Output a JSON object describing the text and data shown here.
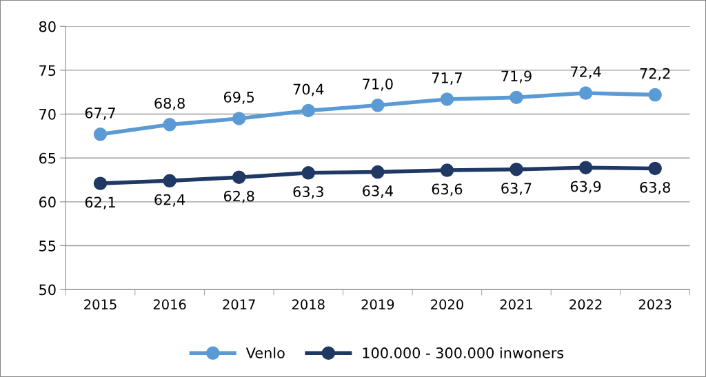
{
  "chart_data": {
    "type": "line",
    "categories": [
      "2015",
      "2016",
      "2017",
      "2018",
      "2019",
      "2020",
      "2021",
      "2022",
      "2023"
    ],
    "series": [
      {
        "name": "Venlo",
        "color": "#5b9bd5",
        "values": [
          67.7,
          68.8,
          69.5,
          70.4,
          71.0,
          71.7,
          71.9,
          72.4,
          72.2
        ],
        "value_labels": [
          "67,7",
          "68,8",
          "69,5",
          "70,4",
          "71,0",
          "71,7",
          "71,9",
          "72,4",
          "72,2"
        ]
      },
      {
        "name": "100.000 - 300.000 inwoners",
        "color": "#1f3864",
        "values": [
          62.1,
          62.4,
          62.8,
          63.3,
          63.4,
          63.6,
          63.7,
          63.9,
          63.8
        ],
        "value_labels": [
          "62,1",
          "62,4",
          "62,8",
          "63,3",
          "63,4",
          "63,6",
          "63,7",
          "63,9",
          "63,8"
        ]
      }
    ],
    "ylim": [
      50,
      80
    ],
    "yticks": [
      50,
      55,
      60,
      65,
      70,
      75,
      80
    ],
    "grid": "y",
    "legend": "bottom",
    "marker": "circle",
    "line_style": "solid"
  }
}
